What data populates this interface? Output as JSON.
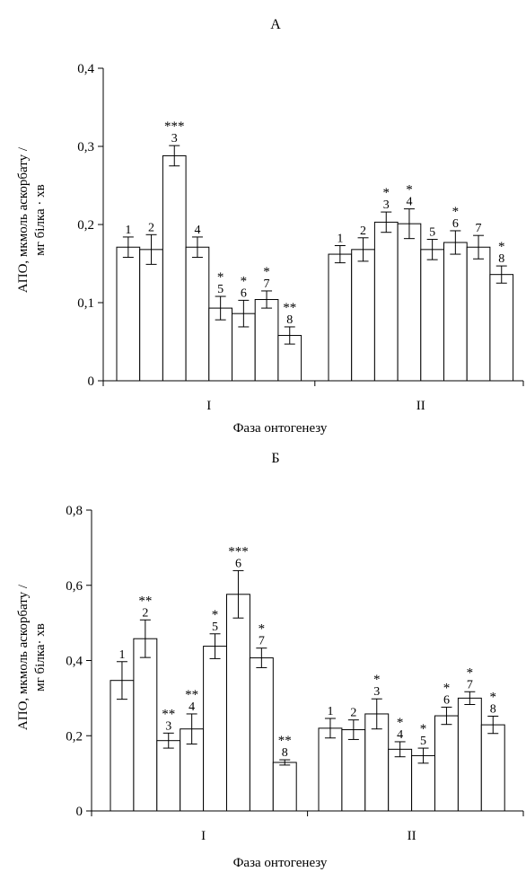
{
  "chart_data": [
    {
      "type": "bar",
      "title": "А",
      "ylabel_lines": [
        "АПО, мкмоль аскорбату /",
        "мг білка · хв"
      ],
      "xlabel": "Фаза онтогенезу",
      "ylim": [
        0,
        0.4
      ],
      "yticks": [
        "0",
        "0,1",
        "0,2",
        "0,3",
        "0,4"
      ],
      "groups": [
        {
          "label": "I",
          "bars": [
            {
              "label": "1",
              "value": 0.171,
              "error": 0.013,
              "sig": ""
            },
            {
              "label": "2",
              "value": 0.168,
              "error": 0.019,
              "sig": ""
            },
            {
              "label": "3",
              "value": 0.288,
              "error": 0.013,
              "sig": "***"
            },
            {
              "label": "4",
              "value": 0.171,
              "error": 0.013,
              "sig": ""
            },
            {
              "label": "5",
              "value": 0.093,
              "error": 0.015,
              "sig": "*"
            },
            {
              "label": "6",
              "value": 0.086,
              "error": 0.017,
              "sig": "*"
            },
            {
              "label": "7",
              "value": 0.104,
              "error": 0.011,
              "sig": "*"
            },
            {
              "label": "8",
              "value": 0.058,
              "error": 0.011,
              "sig": "**"
            }
          ]
        },
        {
          "label": "II",
          "bars": [
            {
              "label": "1",
              "value": 0.162,
              "error": 0.011,
              "sig": ""
            },
            {
              "label": "2",
              "value": 0.168,
              "error": 0.015,
              "sig": ""
            },
            {
              "label": "3",
              "value": 0.203,
              "error": 0.013,
              "sig": "*"
            },
            {
              "label": "4",
              "value": 0.201,
              "error": 0.019,
              "sig": "*"
            },
            {
              "label": "5",
              "value": 0.168,
              "error": 0.013,
              "sig": ""
            },
            {
              "label": "6",
              "value": 0.177,
              "error": 0.015,
              "sig": "*"
            },
            {
              "label": "7",
              "value": 0.171,
              "error": 0.015,
              "sig": ""
            },
            {
              "label": "8",
              "value": 0.136,
              "error": 0.011,
              "sig": "*"
            }
          ]
        }
      ]
    },
    {
      "type": "bar",
      "title": "Б",
      "ylabel_lines": [
        "АПО, мкмоль аскорбату /",
        "мг білка· хв"
      ],
      "xlabel": "Фаза онтогенезу",
      "ylim": [
        0,
        0.8
      ],
      "yticks": [
        "0",
        "0,2",
        "0,4",
        "0,6",
        "0,8"
      ],
      "groups": [
        {
          "label": "I",
          "bars": [
            {
              "label": "1",
              "value": 0.347,
              "error": 0.05,
              "sig": ""
            },
            {
              "label": "2",
              "value": 0.458,
              "error": 0.05,
              "sig": "**"
            },
            {
              "label": "3",
              "value": 0.187,
              "error": 0.02,
              "sig": "**"
            },
            {
              "label": "4",
              "value": 0.218,
              "error": 0.04,
              "sig": "**"
            },
            {
              "label": "5",
              "value": 0.438,
              "error": 0.033,
              "sig": "*"
            },
            {
              "label": "6",
              "value": 0.576,
              "error": 0.063,
              "sig": "***"
            },
            {
              "label": "7",
              "value": 0.407,
              "error": 0.026,
              "sig": "*"
            },
            {
              "label": "8",
              "value": 0.129,
              "error": 0.007,
              "sig": "**"
            }
          ]
        },
        {
          "label": "II",
          "bars": [
            {
              "label": "1",
              "value": 0.22,
              "error": 0.026,
              "sig": ""
            },
            {
              "label": "2",
              "value": 0.216,
              "error": 0.026,
              "sig": ""
            },
            {
              "label": "3",
              "value": 0.258,
              "error": 0.04,
              "sig": "*"
            },
            {
              "label": "4",
              "value": 0.164,
              "error": 0.02,
              "sig": "*"
            },
            {
              "label": "5",
              "value": 0.147,
              "error": 0.02,
              "sig": "*"
            },
            {
              "label": "6",
              "value": 0.253,
              "error": 0.023,
              "sig": "*"
            },
            {
              "label": "7",
              "value": 0.3,
              "error": 0.017,
              "sig": "*"
            },
            {
              "label": "8",
              "value": 0.229,
              "error": 0.023,
              "sig": "*"
            }
          ]
        }
      ]
    }
  ]
}
